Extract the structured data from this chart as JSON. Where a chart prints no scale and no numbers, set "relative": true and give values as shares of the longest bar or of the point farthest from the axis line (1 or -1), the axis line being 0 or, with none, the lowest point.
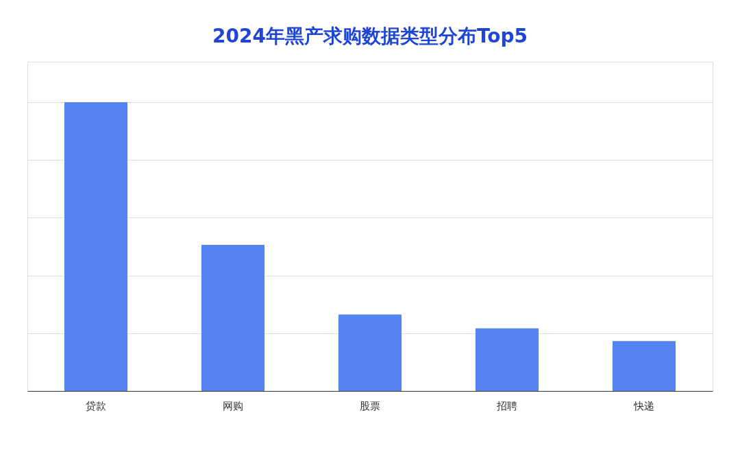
{
  "chart_data": {
    "type": "bar",
    "title": "2024年黑产求购数据类型分布Top5",
    "categories": [
      "贷款",
      "网购",
      "股票",
      "招聘",
      "快递"
    ],
    "values": [
      1,
      0.506,
      0.265,
      0.217,
      0.173
    ],
    "color": "#5484f0",
    "relative": true,
    "grid": "y"
  }
}
